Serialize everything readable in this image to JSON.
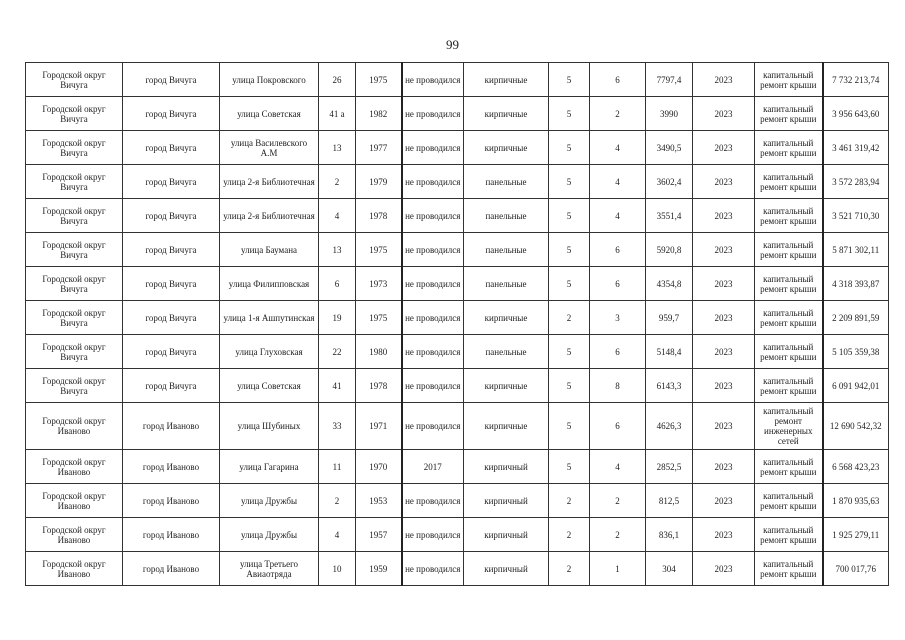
{
  "page_number": "99",
  "rows": [
    [
      "Городской округ Вичуга",
      "город Вичуга",
      "улица Покровского",
      "26",
      "1975",
      "не проводился",
      "кирпичные",
      "5",
      "6",
      "7797,4",
      "2023",
      "капитальный ремонт крыши",
      "7 732 213,74"
    ],
    [
      "Городской округ Вичуга",
      "город Вичуга",
      "улица Советская",
      "41 а",
      "1982",
      "не проводился",
      "кирпичные",
      "5",
      "2",
      "3990",
      "2023",
      "капитальный ремонт крыши",
      "3 956 643,60"
    ],
    [
      "Городской округ Вичуга",
      "город Вичуга",
      "улица Василевского А.М",
      "13",
      "1977",
      "не проводился",
      "кирпичные",
      "5",
      "4",
      "3490,5",
      "2023",
      "капитальный ремонт крыши",
      "3 461 319,42"
    ],
    [
      "Городской округ Вичуга",
      "город Вичуга",
      "улица 2-я Библиотечная",
      "2",
      "1979",
      "не проводился",
      "панельные",
      "5",
      "4",
      "3602,4",
      "2023",
      "капитальный ремонт крыши",
      "3 572 283,94"
    ],
    [
      "Городской округ Вичуга",
      "город Вичуга",
      "улица 2-я Библиотечная",
      "4",
      "1978",
      "не проводился",
      "панельные",
      "5",
      "4",
      "3551,4",
      "2023",
      "капитальный ремонт крыши",
      "3 521 710,30"
    ],
    [
      "Городской округ Вичуга",
      "город Вичуга",
      "улица Баумана",
      "13",
      "1975",
      "не проводился",
      "панельные",
      "5",
      "6",
      "5920,8",
      "2023",
      "капитальный ремонт крыши",
      "5 871 302,11"
    ],
    [
      "Городской округ Вичуга",
      "город Вичуга",
      "улица Филипповская",
      "6",
      "1973",
      "не проводился",
      "панельные",
      "5",
      "6",
      "4354,8",
      "2023",
      "капитальный ремонт крыши",
      "4 318 393,87"
    ],
    [
      "Городской округ Вичуга",
      "город Вичуга",
      "улица 1-я Ашпутинская",
      "19",
      "1975",
      "не проводился",
      "кирпичные",
      "2",
      "3",
      "959,7",
      "2023",
      "капитальный ремонт крыши",
      "2 209 891,59"
    ],
    [
      "Городской округ Вичуга",
      "город Вичуга",
      "улица Глуховская",
      "22",
      "1980",
      "не проводился",
      "панельные",
      "5",
      "6",
      "5148,4",
      "2023",
      "капитальный ремонт крыши",
      "5 105 359,38"
    ],
    [
      "Городской округ Вичуга",
      "город Вичуга",
      "улица Советская",
      "41",
      "1978",
      "не проводился",
      "кирпичные",
      "5",
      "8",
      "6143,3",
      "2023",
      "капитальный ремонт крыши",
      "6 091 942,01"
    ],
    [
      "Городской округ Иваново",
      "город Иваново",
      "улица Шубиных",
      "33",
      "1971",
      "не проводился",
      "кирпичные",
      "5",
      "6",
      "4626,3",
      "2023",
      "капитальный ремонт инженерных сетей",
      "12 690 542,32"
    ],
    [
      "Городской округ Иваново",
      "город Иваново",
      "улица Гагарина",
      "11",
      "1970",
      "2017",
      "кирпичный",
      "5",
      "4",
      "2852,5",
      "2023",
      "капитальный ремонт крыши",
      "6 568 423,23"
    ],
    [
      "Городской округ Иваново",
      "город Иваново",
      "улица Дружбы",
      "2",
      "1953",
      "не проводился",
      "кирпичный",
      "2",
      "2",
      "812,5",
      "2023",
      "капитальный ремонт крыши",
      "1 870 935,63"
    ],
    [
      "Городской округ Иваново",
      "город Иваново",
      "улица Дружбы",
      "4",
      "1957",
      "не проводился",
      "кирпичный",
      "2",
      "2",
      "836,1",
      "2023",
      "капитальный ремонт крыши",
      "1 925 279,11"
    ],
    [
      "Городской округ Иваново",
      "город Иваново",
      "улица Третьего Авиаотряда",
      "10",
      "1959",
      "не проводился",
      "кирпичный",
      "2",
      "1",
      "304",
      "2023",
      "капитальный ремонт крыши",
      "700 017,76"
    ]
  ]
}
